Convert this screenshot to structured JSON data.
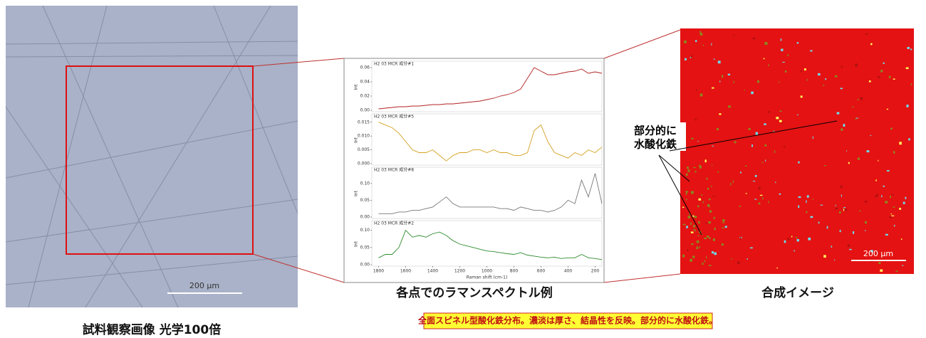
{
  "left_image": {
    "scale_bar": "200 μm",
    "caption": "試料観察画像 光学100倍"
  },
  "spectra": {
    "caption": "各点でのラマンスペクトル例"
  },
  "map": {
    "scale_bar": "200 μm",
    "annotation": [
      "部分的に",
      "水酸化鉄"
    ],
    "caption": "合成イメージ"
  },
  "note": "全面スピネル型酸化鉄分布。濃淡は厚さ、結晶性を反映。部分的に水酸化鉄。",
  "chart_data": [
    {
      "type": "line",
      "title": "H2 03 MCR 成分#1",
      "y_label": "Int",
      "color": "#b22222",
      "x": [
        1800,
        1750,
        1700,
        1650,
        1600,
        1550,
        1500,
        1450,
        1400,
        1350,
        1300,
        1250,
        1200,
        1150,
        1100,
        1050,
        1000,
        950,
        900,
        850,
        800,
        750,
        700,
        650,
        600,
        550,
        500,
        450,
        400,
        350,
        300,
        250,
        200,
        150
      ],
      "values": [
        0.002,
        0.003,
        0.004,
        0.005,
        0.005,
        0.006,
        0.006,
        0.007,
        0.008,
        0.008,
        0.009,
        0.009,
        0.01,
        0.011,
        0.012,
        0.013,
        0.015,
        0.017,
        0.02,
        0.022,
        0.025,
        0.03,
        0.045,
        0.06,
        0.055,
        0.05,
        0.05,
        0.052,
        0.054,
        0.055,
        0.058,
        0.052,
        0.054,
        0.052
      ],
      "xlim": [
        1850,
        150
      ],
      "ylim": [
        0,
        0.065
      ],
      "yticks": [
        {
          "value": 0,
          "label": "0.00"
        },
        {
          "value": 0.02,
          "label": "0.02"
        },
        {
          "value": 0.04,
          "label": "0.04"
        },
        {
          "value": 0.06,
          "label": "0.06"
        }
      ]
    },
    {
      "type": "line",
      "title": "H2 03 MCR 成分#5",
      "y_label": "Int",
      "color": "#d4a020",
      "x": [
        1800,
        1750,
        1700,
        1650,
        1600,
        1550,
        1500,
        1450,
        1400,
        1350,
        1300,
        1250,
        1200,
        1150,
        1100,
        1050,
        1000,
        950,
        900,
        850,
        800,
        750,
        700,
        650,
        600,
        550,
        500,
        450,
        400,
        350,
        300,
        250,
        200,
        150
      ],
      "values": [
        0.015,
        0.014,
        0.013,
        0.011,
        0.008,
        0.005,
        0.004,
        0.004,
        0.005,
        0.003,
        0.001,
        0.003,
        0.004,
        0.004,
        0.005,
        0.005,
        0.004,
        0.005,
        0.004,
        0.004,
        0.003,
        0.003,
        0.004,
        0.012,
        0.014,
        0.008,
        0.004,
        0.003,
        0.002,
        0.004,
        0.003,
        0.005,
        0.004,
        0.006
      ],
      "xlim": [
        1850,
        150
      ],
      "ylim": [
        0,
        0.017
      ],
      "yticks": [
        {
          "value": 0,
          "label": "0.000"
        },
        {
          "value": 0.005,
          "label": "0.005"
        },
        {
          "value": 0.01,
          "label": "0.010"
        },
        {
          "value": 0.015,
          "label": "0.015"
        }
      ]
    },
    {
      "type": "line",
      "title": "H2 03 MCR 成分#8",
      "y_label": "Int",
      "color": "#777777",
      "x": [
        1800,
        1750,
        1700,
        1650,
        1600,
        1550,
        1500,
        1450,
        1400,
        1350,
        1300,
        1250,
        1200,
        1150,
        1100,
        1050,
        1000,
        950,
        900,
        850,
        800,
        750,
        700,
        650,
        600,
        550,
        500,
        450,
        400,
        350,
        300,
        250,
        200,
        150
      ],
      "values": [
        0.01,
        0.01,
        0.01,
        0.015,
        0.015,
        0.02,
        0.02,
        0.025,
        0.03,
        0.045,
        0.06,
        0.04,
        0.03,
        0.03,
        0.03,
        0.03,
        0.03,
        0.03,
        0.025,
        0.025,
        0.02,
        0.03,
        0.025,
        0.02,
        0.02,
        0.015,
        0.02,
        0.03,
        0.05,
        0.04,
        0.11,
        0.06,
        0.13,
        0.04
      ],
      "xlim": [
        1850,
        150
      ],
      "ylim": [
        0,
        0.14
      ],
      "yticks": [
        {
          "value": 0,
          "label": "0.00"
        },
        {
          "value": 0.05,
          "label": "0.05"
        },
        {
          "value": 0.1,
          "label": "0.10"
        }
      ]
    },
    {
      "type": "line",
      "title": "H2 03 MCR 成分#2",
      "y_label": "Int",
      "color": "#2e8b2e",
      "x": [
        1800,
        1750,
        1700,
        1650,
        1600,
        1550,
        1500,
        1450,
        1400,
        1350,
        1300,
        1250,
        1200,
        1150,
        1100,
        1050,
        1000,
        950,
        900,
        850,
        800,
        750,
        700,
        650,
        600,
        550,
        500,
        450,
        400,
        350,
        300,
        250,
        200,
        150
      ],
      "values": [
        0.02,
        0.03,
        0.03,
        0.05,
        0.1,
        0.08,
        0.085,
        0.08,
        0.09,
        0.095,
        0.085,
        0.07,
        0.06,
        0.055,
        0.05,
        0.045,
        0.04,
        0.038,
        0.035,
        0.032,
        0.03,
        0.035,
        0.028,
        0.025,
        0.022,
        0.02,
        0.022,
        0.018,
        0.02,
        0.02,
        0.03,
        0.02,
        0.018,
        0.015
      ],
      "xlim": [
        1850,
        150
      ],
      "ylim": [
        0,
        0.12
      ],
      "yticks": [
        {
          "value": 0,
          "label": "0.00"
        },
        {
          "value": 0.05,
          "label": "0.05"
        },
        {
          "value": 0.1,
          "label": "0.10"
        }
      ],
      "xticks": [
        1800,
        1600,
        1400,
        1200,
        1000,
        800,
        600,
        400,
        200
      ],
      "x_label": "Raman shift (cm-1)"
    }
  ]
}
